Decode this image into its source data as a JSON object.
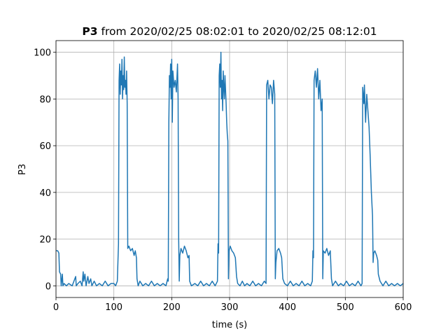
{
  "chart_data": {
    "type": "line",
    "title_bold": "P3",
    "title": "from 2020/02/25 08:02:01 to 2020/02/25 08:12:01",
    "xlabel": "time (s)",
    "ylabel": "P3",
    "xlim": [
      0,
      600
    ],
    "ylim": [
      -5,
      105
    ],
    "xticks": [
      0,
      100,
      200,
      300,
      400,
      500,
      600
    ],
    "yticks": [
      0,
      20,
      40,
      60,
      80,
      100
    ],
    "grid": true,
    "series": [
      {
        "color": "#1f77b4",
        "x": [
          0,
          3,
          5,
          6,
          8,
          9,
          11,
          12,
          14,
          18,
          22,
          28,
          34,
          35,
          38,
          42,
          45,
          47,
          48,
          50,
          52,
          55,
          57,
          60,
          62,
          66,
          70,
          75,
          80,
          85,
          90,
          95,
          100,
          103,
          106,
          107,
          108,
          109,
          110,
          111,
          112,
          113,
          114,
          115,
          116,
          117,
          118,
          119,
          120,
          121,
          122,
          123,
          124,
          126,
          129,
          132,
          135,
          137,
          139,
          140,
          142,
          145,
          150,
          155,
          160,
          165,
          170,
          175,
          180,
          185,
          190,
          193,
          194,
          195,
          196,
          197,
          198,
          199,
          200,
          201,
          202,
          204,
          206,
          208,
          210,
          211,
          212,
          213,
          214,
          216,
          219,
          222,
          225,
          228,
          230,
          231,
          234,
          240,
          245,
          250,
          255,
          260,
          265,
          270,
          275,
          279,
          280,
          281,
          282,
          283,
          284,
          285,
          286,
          287,
          288,
          289,
          290,
          291,
          292,
          294,
          295,
          296,
          297,
          298,
          299,
          301,
          304,
          307,
          310,
          312,
          314,
          318,
          322,
          326,
          330,
          335,
          340,
          345,
          350,
          355,
          360,
          363,
          364,
          366,
          368,
          370,
          372,
          374,
          376,
          378,
          379,
          380,
          382,
          385,
          388,
          390,
          392,
          395,
          400,
          405,
          410,
          415,
          420,
          425,
          430,
          435,
          440,
          443,
          444,
          445,
          446,
          448,
          450,
          452,
          454,
          456,
          458,
          460,
          461,
          462,
          465,
          468,
          471,
          474,
          476,
          478,
          483,
          488,
          492,
          497,
          502,
          507,
          512,
          517,
          522,
          527,
          529,
          530,
          532,
          533,
          535,
          537,
          539,
          541,
          543,
          545,
          547,
          548,
          549,
          551,
          554,
          556,
          557,
          560,
          565,
          570,
          575,
          580,
          585,
          590,
          595,
          600
        ],
        "values": [
          15,
          15,
          14,
          6,
          5,
          0,
          5,
          0,
          1,
          0,
          1,
          0,
          4,
          0,
          1,
          2,
          0,
          6,
          2,
          5,
          0,
          4,
          1,
          3,
          0,
          2,
          0,
          1,
          0,
          2,
          0,
          1,
          1,
          0,
          2,
          10,
          18,
          88,
          95,
          82,
          92,
          86,
          97,
          80,
          90,
          84,
          98,
          85,
          88,
          82,
          92,
          78,
          16,
          17,
          15,
          16,
          13,
          15,
          12,
          3,
          0,
          2,
          0,
          1,
          0,
          2,
          0,
          1,
          0,
          1,
          0,
          3,
          2,
          70,
          90,
          85,
          95,
          80,
          97,
          70,
          92,
          85,
          88,
          83,
          95,
          80,
          20,
          2,
          13,
          16,
          14,
          17,
          15,
          12,
          13,
          2,
          0,
          1,
          0,
          2,
          0,
          1,
          0,
          2,
          0,
          2,
          18,
          14,
          90,
          95,
          85,
          100,
          80,
          88,
          75,
          92,
          85,
          80,
          90,
          78,
          70,
          65,
          62,
          3,
          15,
          17,
          15,
          14,
          12,
          4,
          1,
          0,
          2,
          0,
          1,
          0,
          2,
          0,
          1,
          0,
          2,
          1,
          86,
          88,
          80,
          86,
          85,
          78,
          88,
          82,
          3,
          10,
          15,
          16,
          14,
          12,
          3,
          1,
          0,
          2,
          0,
          1,
          0,
          2,
          0,
          1,
          0,
          2,
          15,
          12,
          88,
          92,
          85,
          93,
          80,
          88,
          75,
          80,
          3,
          15,
          14,
          16,
          13,
          15,
          3,
          0,
          2,
          0,
          1,
          0,
          2,
          0,
          1,
          0,
          2,
          0,
          1,
          85,
          78,
          86,
          70,
          82,
          75,
          68,
          55,
          40,
          30,
          10,
          14,
          15,
          13,
          11,
          5,
          2,
          0,
          2,
          0,
          1,
          0,
          1,
          0,
          1
        ]
      }
    ]
  }
}
